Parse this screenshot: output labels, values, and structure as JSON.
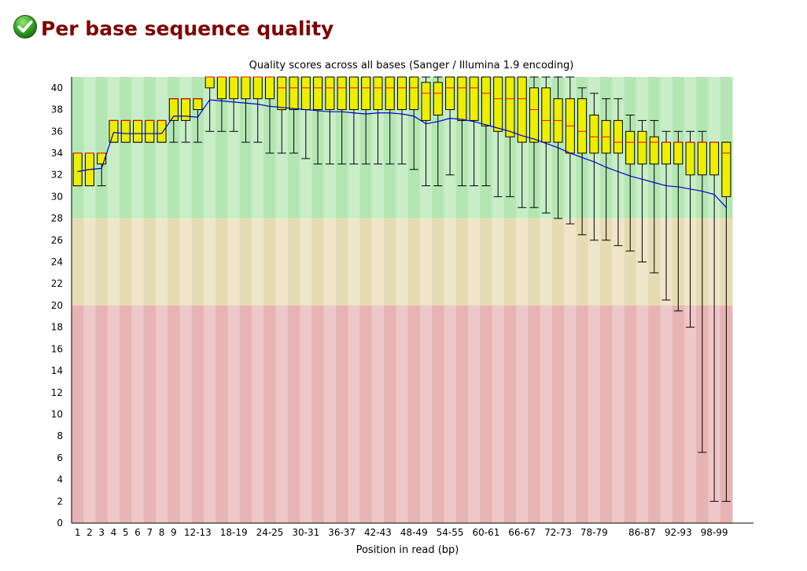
{
  "header": {
    "title": "Per base sequence quality",
    "status_icon": "check-pass-icon",
    "status": "pass"
  },
  "colors": {
    "title": "#800000",
    "good_zone": "#b4e6b4",
    "warn_zone": "#e6dcb4",
    "fail_zone": "#e6b4b4",
    "box_fill": "#eeee00",
    "median": "#ff0000",
    "mean": "#0000c8"
  },
  "chart_data": {
    "type": "boxplot",
    "title": "Quality scores across all bases (Sanger / Illumina 1.9 encoding)",
    "xlabel": "Position in read (bp)",
    "ylabel": "",
    "ylim": [
      0,
      41
    ],
    "yticks": [
      0,
      2,
      4,
      6,
      8,
      10,
      12,
      14,
      16,
      18,
      20,
      22,
      24,
      26,
      28,
      30,
      32,
      34,
      36,
      38,
      40
    ],
    "zones": [
      {
        "name": "good",
        "from": 28,
        "to": 41
      },
      {
        "name": "warn",
        "from": 20,
        "to": 28
      },
      {
        "name": "fail",
        "from": 0,
        "to": 20
      }
    ],
    "categories": [
      "1",
      "2",
      "3",
      "4",
      "5",
      "6",
      "7",
      "8",
      "9",
      "10-11",
      "12-13",
      "14-15",
      "16-17",
      "18-19",
      "20-21",
      "22-23",
      "24-25",
      "26-27",
      "28-29",
      "30-31",
      "32-33",
      "34-35",
      "36-37",
      "38-39",
      "40-41",
      "42-43",
      "44-45",
      "46-47",
      "48-49",
      "50-51",
      "52-53",
      "54-55",
      "56-57",
      "58-59",
      "60-61",
      "62-63",
      "64-65",
      "66-67",
      "68-69",
      "70-71",
      "72-73",
      "74-75",
      "76-77",
      "78-79",
      "80-81",
      "82-83",
      "84-85",
      "86-87",
      "88-89",
      "90-91",
      "92-93",
      "94-95",
      "96-97",
      "98-99",
      "100"
    ],
    "xtick_labels": [
      "1",
      "2",
      "3",
      "4",
      "5",
      "6",
      "7",
      "8",
      "9",
      "12-13",
      "18-19",
      "24-25",
      "30-31",
      "36-37",
      "42-43",
      "48-49",
      "54-55",
      "60-61",
      "66-67",
      "72-73",
      "78-79",
      "86-87",
      "92-93",
      "98-99"
    ],
    "series": [
      {
        "name": "mean",
        "values": [
          32.3,
          32.5,
          32.6,
          35.9,
          35.8,
          35.8,
          35.8,
          35.8,
          37.4,
          37.4,
          37.3,
          38.9,
          38.8,
          38.7,
          38.6,
          38.5,
          38.3,
          38.2,
          38.1,
          38.0,
          37.9,
          37.8,
          37.8,
          37.7,
          37.6,
          37.7,
          37.7,
          37.6,
          37.4,
          36.7,
          36.9,
          37.2,
          37.1,
          36.9,
          36.6,
          36.3,
          36.0,
          35.6,
          35.3,
          34.9,
          34.5,
          34.0,
          33.6,
          33.2,
          32.7,
          32.3,
          31.9,
          31.6,
          31.3,
          31.0,
          30.9,
          30.7,
          30.5,
          30.2,
          29.0
        ]
      },
      {
        "name": "median",
        "values": [
          34,
          34,
          34,
          37,
          37,
          37,
          37,
          37,
          39,
          39,
          39,
          41,
          41,
          41,
          41,
          41,
          41,
          40,
          40,
          40,
          40,
          40,
          40,
          40,
          40,
          40,
          40,
          40,
          40,
          39.5,
          39.5,
          40,
          40,
          40,
          39.5,
          39,
          39,
          39,
          38,
          37,
          37,
          36.5,
          36,
          35.5,
          35.5,
          35,
          35,
          35,
          35,
          35,
          35,
          35,
          35,
          35,
          34
        ]
      },
      {
        "name": "lower_quartile",
        "values": [
          31,
          31,
          33,
          35,
          35,
          35,
          35,
          35,
          37,
          37,
          38,
          40,
          39,
          39,
          39,
          39,
          39,
          38,
          38,
          38,
          38,
          38,
          38,
          38,
          38,
          38,
          38,
          38,
          38,
          37,
          37.5,
          38,
          37,
          37,
          36.5,
          36,
          35.5,
          35,
          35,
          35,
          35,
          34,
          34,
          34,
          34,
          34,
          33,
          33,
          33,
          33,
          33,
          32,
          32,
          32,
          30
        ]
      },
      {
        "name": "upper_quartile",
        "values": [
          34,
          34,
          34,
          37,
          37,
          37,
          37,
          37,
          39,
          39,
          39,
          41,
          41,
          41,
          41,
          41,
          41,
          41,
          41,
          41,
          41,
          41,
          41,
          41,
          41,
          41,
          41,
          41,
          41,
          40.5,
          40.5,
          41,
          41,
          41,
          41,
          41,
          41,
          41,
          40,
          40,
          39,
          39,
          39,
          37.5,
          37,
          37,
          36,
          36,
          35.5,
          35,
          35,
          35,
          35,
          35,
          35
        ]
      },
      {
        "name": "p10",
        "values": [
          31,
          31,
          31,
          35,
          35,
          35,
          35,
          35,
          35,
          35,
          35,
          36,
          36,
          36,
          35,
          35,
          34,
          34,
          34,
          33.5,
          33,
          33,
          33,
          33,
          33,
          33,
          33,
          33,
          32.5,
          31,
          31,
          32,
          31,
          31,
          31,
          30,
          30,
          29,
          29,
          28.5,
          28,
          27.5,
          26.5,
          26,
          26,
          25.5,
          25,
          24,
          23,
          20.5,
          19.5,
          18,
          6.5,
          2,
          2
        ]
      },
      {
        "name": "p90",
        "values": [
          34,
          34,
          34,
          37,
          37,
          37,
          37,
          37,
          39,
          39,
          39,
          41,
          41,
          41,
          41,
          41,
          41,
          41,
          41,
          41,
          41,
          41,
          41,
          41,
          41,
          41,
          41,
          41,
          41,
          41,
          41,
          41,
          41,
          41,
          41,
          41,
          41,
          41,
          41,
          41,
          41,
          41,
          40,
          39.5,
          39,
          39,
          37.5,
          37,
          37,
          36,
          36,
          36,
          36,
          35,
          35
        ]
      }
    ]
  }
}
